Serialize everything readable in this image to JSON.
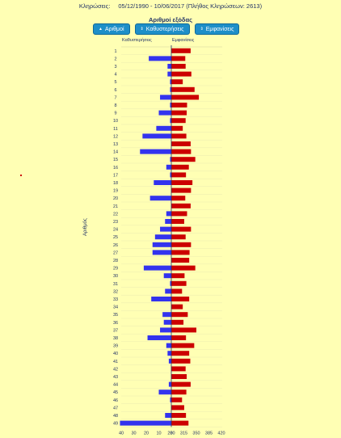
{
  "header": {
    "label": "Κληρώσεις:",
    "range": "05/12/1990 - 10/06/2017",
    "count_text": "(Πλήθος Κληρώσεων: 2613)"
  },
  "controls": {
    "title": "Αριθμοί εξόδας",
    "buttons": [
      {
        "label": "Αριθμοί",
        "icon": "up-arrow-icon"
      },
      {
        "label": "Καθυστερήσεις",
        "icon": "sort-arrows-icon"
      },
      {
        "label": "Εμφανίσεις",
        "icon": "sort-arrows-icon"
      }
    ]
  },
  "colors": {
    "delay": "#3333ee",
    "appear": "#cc0000",
    "background": "#ffffb4"
  },
  "chart_data": {
    "type": "bar",
    "left_label": "Καθυστερήσεις",
    "right_label": "Εμφανίσεις",
    "ylabel": "Αριθμός",
    "categories": [
      "1",
      "2",
      "3",
      "4",
      "5",
      "6",
      "7",
      "8",
      "9",
      "10",
      "11",
      "12",
      "13",
      "14",
      "15",
      "16",
      "17",
      "18",
      "19",
      "20",
      "21",
      "22",
      "23",
      "24",
      "25",
      "26",
      "27",
      "28",
      "29",
      "30",
      "31",
      "32",
      "33",
      "34",
      "35",
      "36",
      "37",
      "38",
      "39",
      "40",
      "41",
      "42",
      "43",
      "44",
      "45",
      "46",
      "47",
      "48",
      "49"
    ],
    "left_ticks": [
      "40",
      "30",
      "20",
      "10",
      "0"
    ],
    "right_ticks": [
      "280",
      "315",
      "350",
      "385",
      "420"
    ],
    "left_range": [
      0,
      40
    ],
    "right_range": [
      280,
      420
    ],
    "series": [
      {
        "name": "Καθυστερήσεις",
        "values": [
          0,
          18,
          3,
          3,
          1,
          1,
          9,
          1,
          10,
          1,
          12,
          23,
          0,
          25,
          1,
          4,
          1,
          14,
          0,
          17,
          0,
          4,
          5,
          9,
          13,
          15,
          15,
          0,
          22,
          6,
          1,
          5,
          16,
          0,
          7,
          6,
          9,
          19,
          4,
          3,
          2,
          0,
          0,
          2,
          10,
          1,
          0,
          5,
          41
        ]
      },
      {
        "name": "Εμφανίσεις",
        "values": [
          334,
          319,
          320,
          336,
          312,
          345,
          357,
          324,
          323,
          320,
          312,
          322,
          334,
          335,
          347,
          329,
          321,
          339,
          335,
          319,
          334,
          324,
          316,
          335,
          320,
          335,
          331,
          330,
          347,
          317,
          322,
          310,
          330,
          312,
          326,
          314,
          350,
          321,
          344,
          330,
          333,
          320,
          323,
          334,
          322,
          310,
          316,
          321,
          328
        ]
      }
    ]
  }
}
